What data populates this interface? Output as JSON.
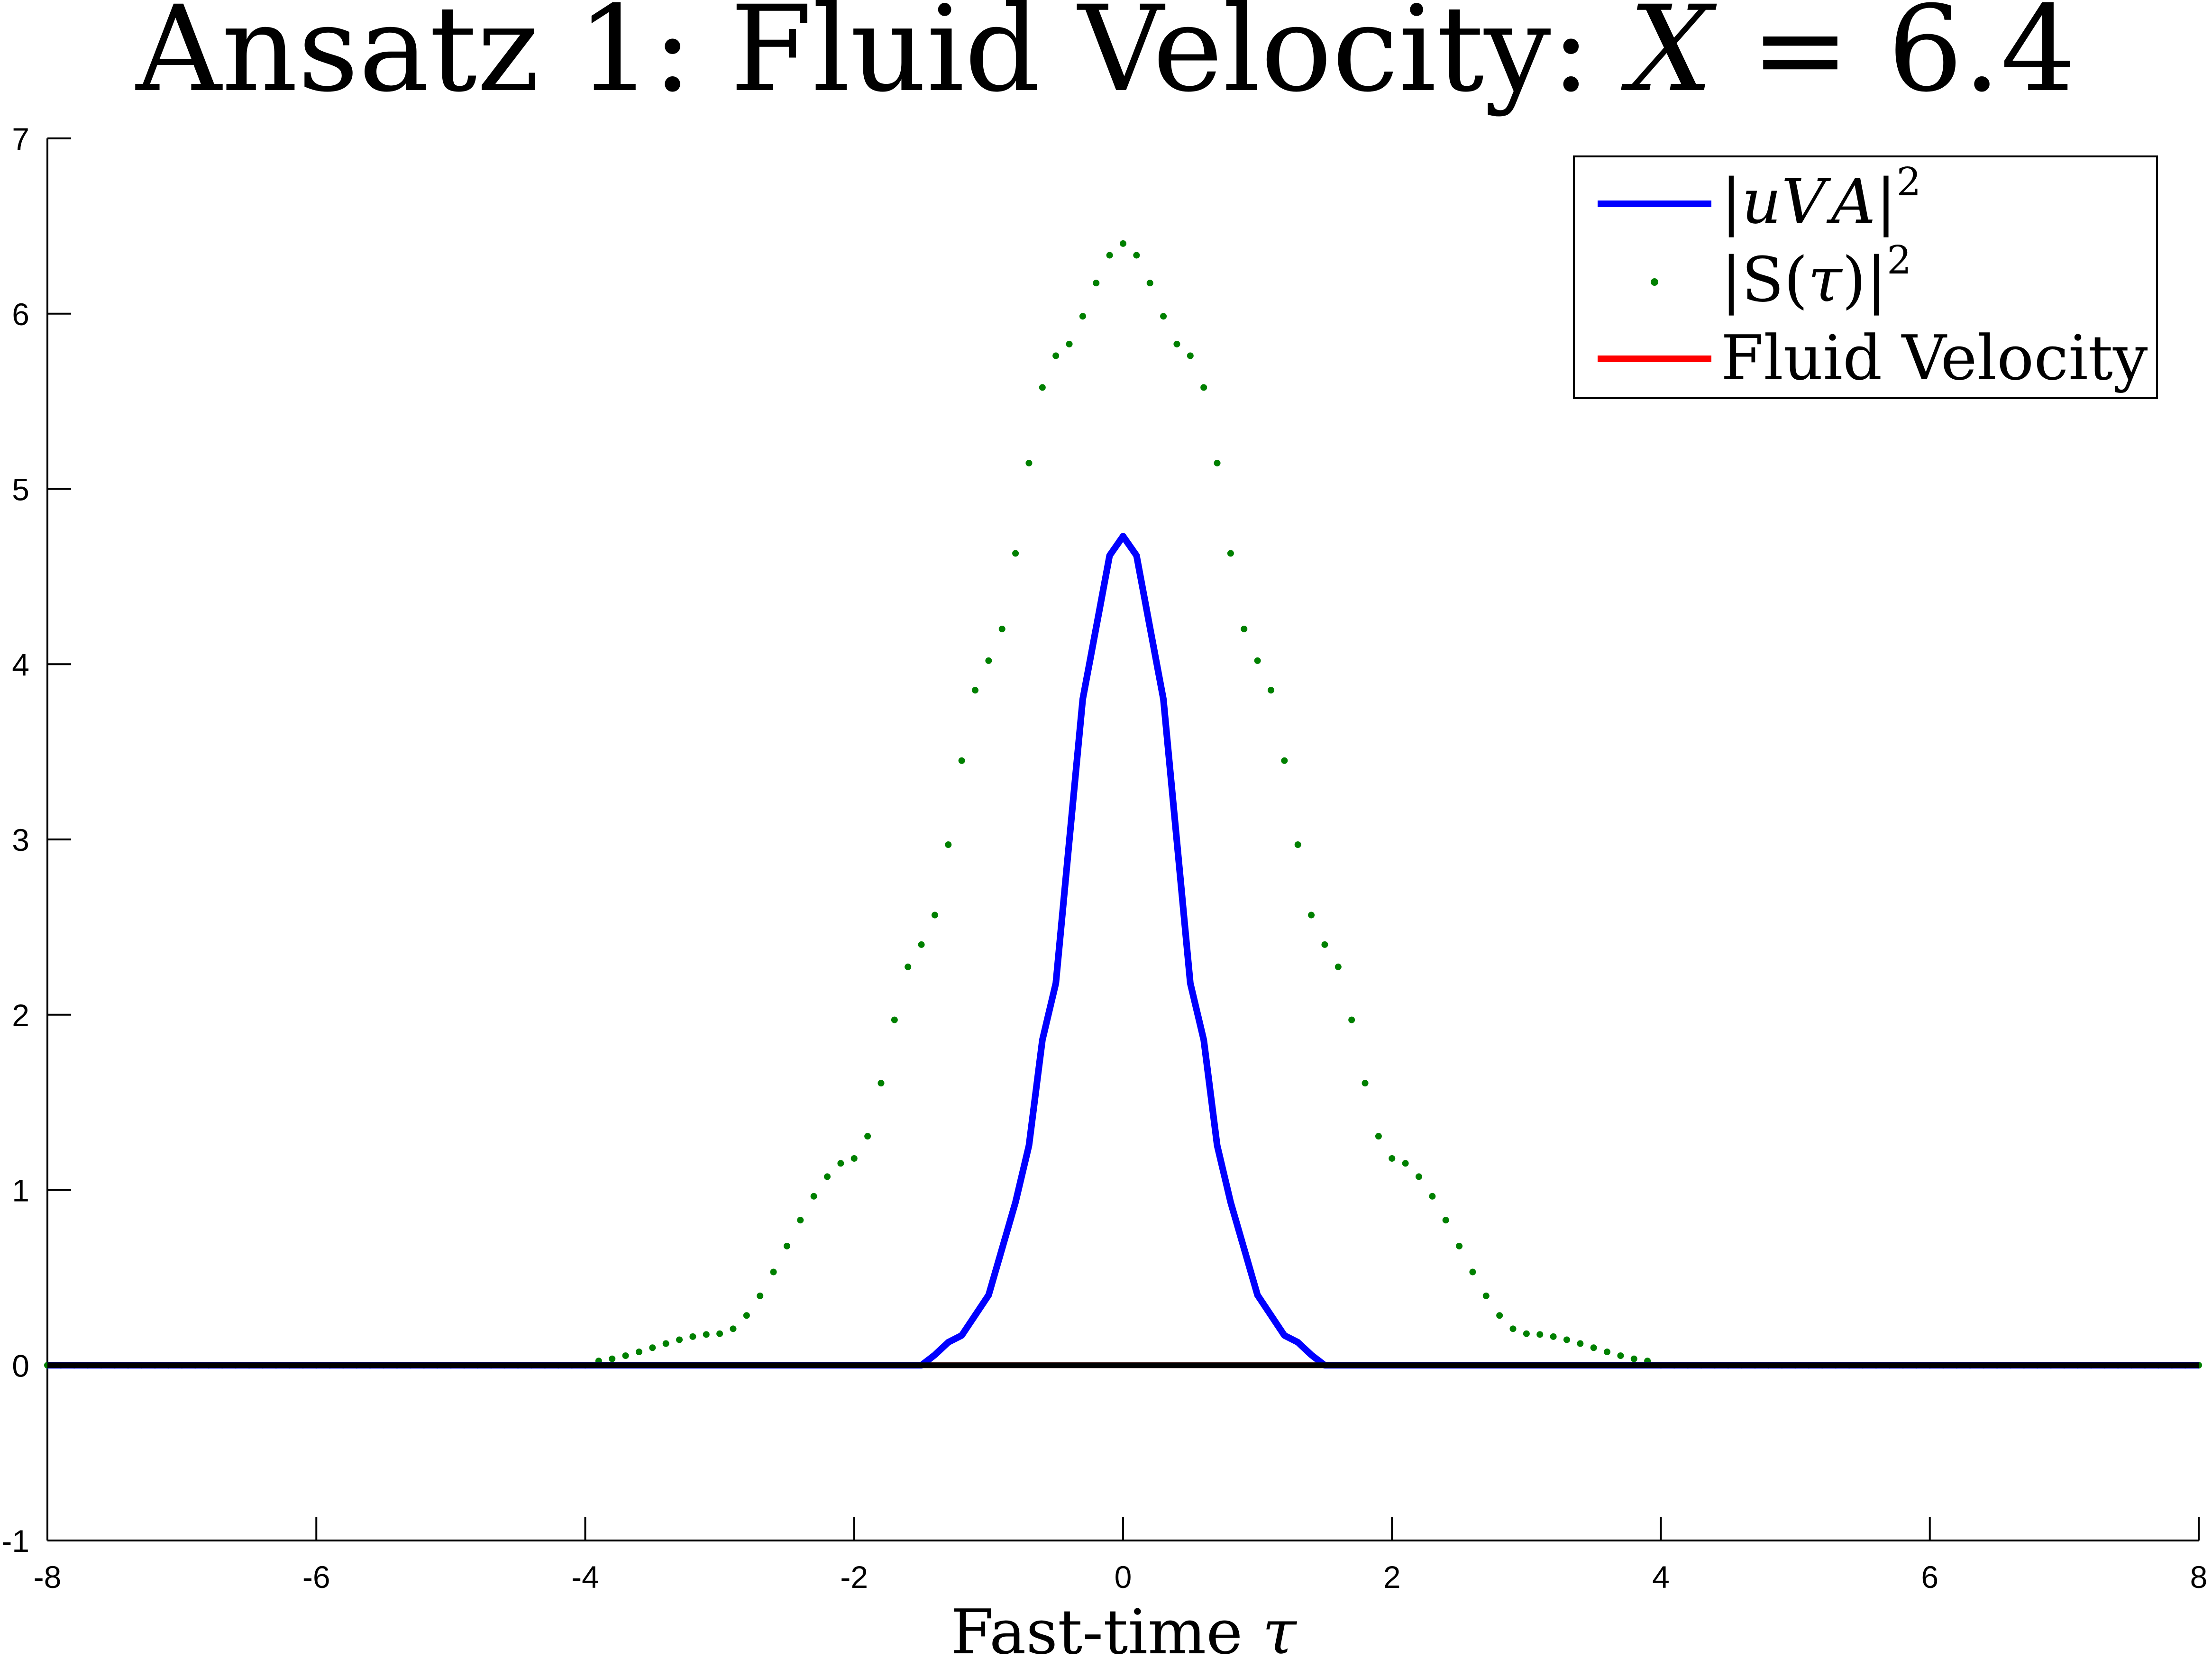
{
  "chart_data": {
    "type": "line",
    "title": {
      "prefix": "Ansatz 1: Fluid Velocity: ",
      "variable": "X",
      "relation": " = 6.4"
    },
    "xlabel": {
      "text": "Fast-time ",
      "symbol": "τ"
    },
    "ylabel": "",
    "xlim": [
      -8,
      8
    ],
    "ylim": [
      -1,
      7
    ],
    "x_ticks": [
      -8,
      -6,
      -4,
      -2,
      0,
      2,
      4,
      6,
      8
    ],
    "x_tick_labels": [
      "-8",
      "-6",
      "-4",
      "-2",
      "0",
      "2",
      "4",
      "6",
      "8"
    ],
    "y_ticks": [
      -1,
      0,
      1,
      2,
      3,
      4,
      5,
      6,
      7
    ],
    "y_tick_labels": [
      "-1",
      "0",
      "1",
      "2",
      "3",
      "4",
      "5",
      "6",
      "7"
    ],
    "grid": false,
    "legend_placement": "top-right",
    "series": [
      {
        "name": "|uV A|^2",
        "legend": {
          "bars": "|",
          "u": "u",
          "V": "V",
          "A": "A",
          "sup": "2"
        },
        "style": "solid",
        "color": "#0000ff",
        "x_range": [
          -8,
          8
        ],
        "points": 161,
        "peak": {
          "x": 0,
          "y": 4.73
        },
        "values_at": [
          {
            "x": -1.5,
            "y": 0.02
          },
          {
            "x": -1.2,
            "y": 0.17
          },
          {
            "x": -1.0,
            "y": 0.4
          },
          {
            "x": -0.8,
            "y": 0.93
          },
          {
            "x": -0.5,
            "y": 2.18
          },
          {
            "x": -0.3,
            "y": 3.8
          },
          {
            "x": -0.1,
            "y": 4.62
          },
          {
            "x": 0.0,
            "y": 4.73
          },
          {
            "x": 0.1,
            "y": 4.62
          },
          {
            "x": 0.3,
            "y": 3.8
          },
          {
            "x": 0.5,
            "y": 2.18
          },
          {
            "x": 0.8,
            "y": 0.93
          },
          {
            "x": 1.0,
            "y": 0.4
          },
          {
            "x": 1.2,
            "y": 0.17
          },
          {
            "x": 1.5,
            "y": 0.02
          }
        ]
      },
      {
        "name": "|S(τ)|^2",
        "legend": {
          "open": "|S(",
          "tau": "τ",
          "close": ")|",
          "sup": "2"
        },
        "style": "dotted",
        "color": "#008000",
        "x_range": [
          -8,
          8
        ],
        "points": 161,
        "peak": {
          "x": 0,
          "y": 6.4
        },
        "values_at": [
          {
            "x": -4.0,
            "y": 0.02
          },
          {
            "x": -3.0,
            "y": 0.18
          },
          {
            "x": -2.0,
            "y": 1.18
          },
          {
            "x": -1.5,
            "y": 2.4
          },
          {
            "x": -1.0,
            "y": 4.02
          },
          {
            "x": -0.5,
            "y": 5.76
          },
          {
            "x": 0.0,
            "y": 6.4
          },
          {
            "x": 0.5,
            "y": 5.76
          },
          {
            "x": 1.0,
            "y": 4.02
          },
          {
            "x": 1.5,
            "y": 2.4
          },
          {
            "x": 2.0,
            "y": 1.18
          },
          {
            "x": 3.0,
            "y": 0.18
          },
          {
            "x": 4.0,
            "y": 0.02
          }
        ]
      },
      {
        "name": "Fluid Velocity",
        "legend": {
          "text": "Fluid Velocity"
        },
        "style": "solid",
        "color": "#ff0000",
        "x_range": [
          -8,
          8
        ],
        "constant_y": 0
      }
    ],
    "baseline": {
      "y": 0,
      "color": "#000000"
    }
  }
}
